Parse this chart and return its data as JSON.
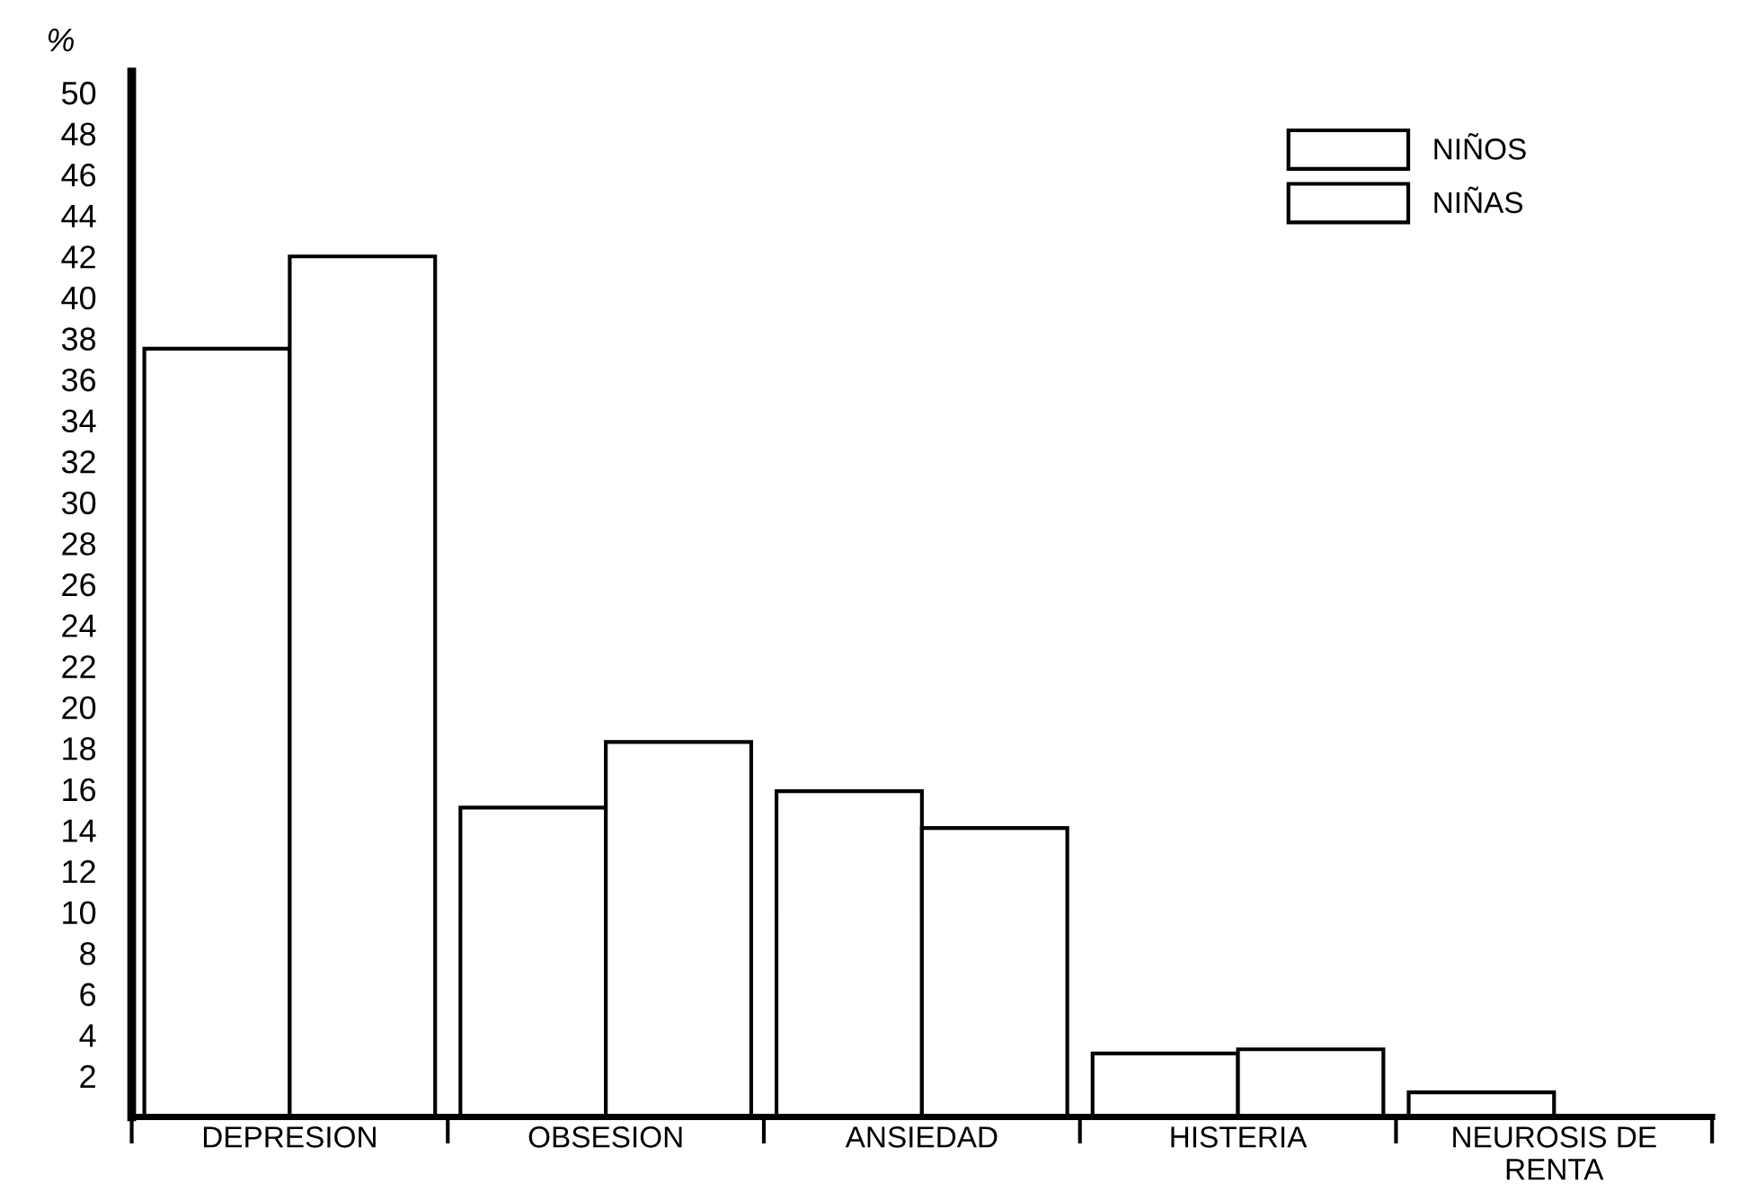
{
  "chart_data": {
    "type": "bar",
    "ylabel": "%",
    "categories": [
      "DEPRESION",
      "OBSESION",
      "ANSIEDAD",
      "HISTERIA",
      "NEUROSIS DE\nRENTA"
    ],
    "series": [
      {
        "name": "NIÑOS",
        "color": "#ffffff",
        "values": [
          37.5,
          15.1,
          15.9,
          3.1,
          1.2
        ]
      },
      {
        "name": "NIÑAS",
        "color": "#ffffff",
        "values": [
          42.0,
          18.3,
          14.1,
          3.3,
          null
        ]
      }
    ],
    "ylim": [
      0,
      51
    ],
    "yticks": [
      2,
      4,
      6,
      8,
      10,
      12,
      14,
      16,
      18,
      20,
      22,
      24,
      26,
      28,
      30,
      32,
      34,
      36,
      38,
      40,
      42,
      44,
      46,
      48,
      50
    ],
    "grid": false,
    "legend": "top right"
  }
}
